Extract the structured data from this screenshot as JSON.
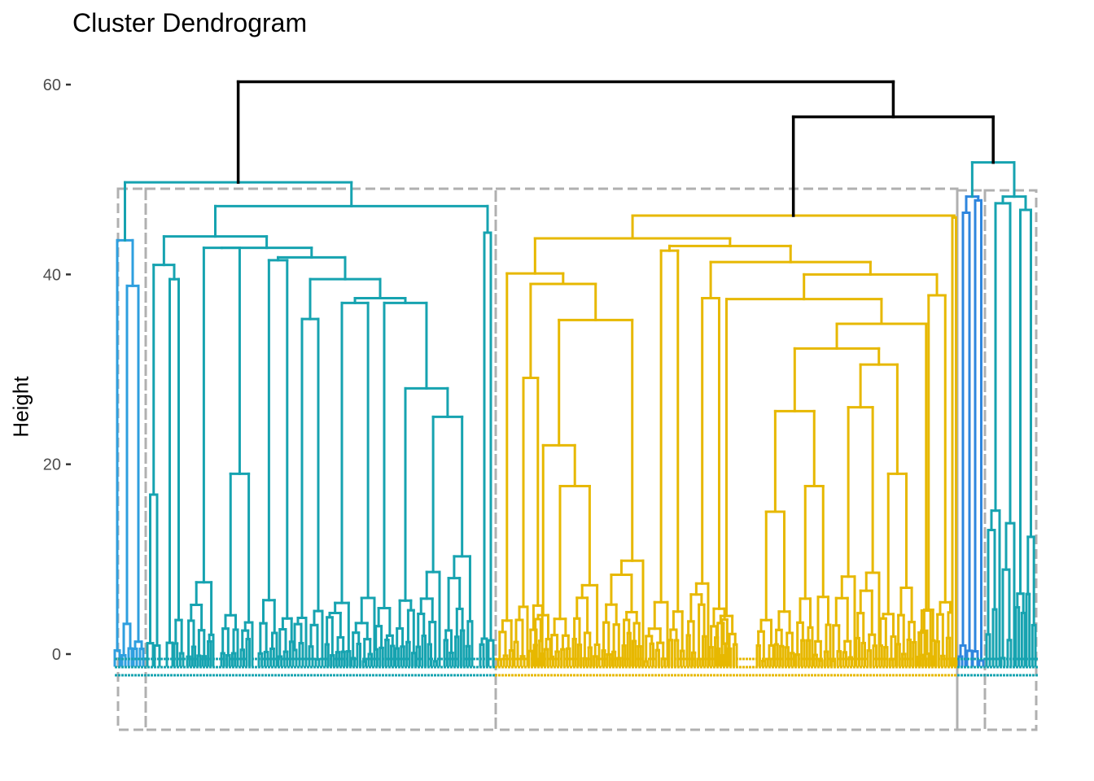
{
  "chart_data": {
    "type": "dendrogram",
    "title": "Cluster Dendrogram",
    "xlabel": "",
    "ylabel": "Height",
    "y_ticks": [
      0,
      20,
      40,
      60
    ],
    "ylim": [
      -8,
      62
    ],
    "k_clusters": 5,
    "cluster_colors": [
      "#2E9FDF",
      "#16A3B0",
      "#E7B800",
      "#2E86DE",
      "#16A3B0"
    ],
    "root_color": "#000000",
    "box_color": "#b0b0b0",
    "merges": [
      {
        "left": "blue-1",
        "right": "teal-1",
        "height": 49.7
      },
      {
        "left": "gold",
        "right": "blue-2|teal-2",
        "height": 56.6
      },
      {
        "left": "blue-2",
        "right": "teal-2",
        "height": 51.8
      },
      {
        "left": "left-group",
        "right": "right-group",
        "height": 60.3
      }
    ]
  }
}
